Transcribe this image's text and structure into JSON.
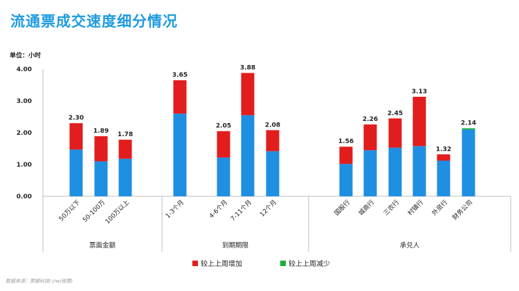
{
  "title": "流通票成交速度细分情况",
  "unit_label": "单位：小时",
  "source": "数据来源：票据科技(小wi统票)",
  "colors": {
    "base": "#1f8fe2",
    "increase": "#e21d1d",
    "decrease": "#1aae3a"
  },
  "chart_data": {
    "type": "bar",
    "stacked": true,
    "ylim": [
      0,
      4
    ],
    "yticks": [
      "0.00",
      "1.00",
      "2.00",
      "3.00",
      "4.00"
    ],
    "grid": false,
    "legend_position": "bottom",
    "legend": {
      "increase": "较上上周增加",
      "decrease": "较上上周减少"
    },
    "groups": [
      {
        "name": "票面金额",
        "categories": [
          "50万以下",
          "50-100万",
          "100万以上"
        ]
      },
      {
        "name": "到期期限",
        "categories": [
          "1-3个月",
          "4-6个月",
          "7-11个月",
          "12个月"
        ]
      },
      {
        "name": "承兑人",
        "categories": [
          "国股行",
          "城商行",
          "三农行",
          "村镇行",
          "外资行",
          "财务公司"
        ]
      }
    ],
    "categories": [
      "50万以下",
      "50-100万",
      "100万以上",
      "1-3个月",
      "4-6个月",
      "7-11个月",
      "12个月",
      "国股行",
      "城商行",
      "三农行",
      "村镇行",
      "外资行",
      "财务公司"
    ],
    "base_values": [
      1.47,
      1.1,
      1.18,
      2.6,
      1.22,
      2.55,
      1.42,
      1.02,
      1.45,
      1.53,
      1.58,
      1.12,
      2.1
    ],
    "increase_values": [
      0.83,
      0.79,
      0.6,
      1.05,
      0.83,
      1.33,
      0.66,
      0.54,
      0.81,
      0.92,
      1.55,
      0.2,
      0
    ],
    "decrease_values": [
      0,
      0,
      0,
      0,
      0,
      0,
      0,
      0,
      0,
      0,
      0,
      0,
      0.04
    ],
    "total_labels": [
      "2.30",
      "1.89",
      "1.78",
      "3.65",
      "2.05",
      "3.88",
      "2.08",
      "1.56",
      "2.26",
      "2.45",
      "3.13",
      "1.32",
      "2.14"
    ]
  }
}
